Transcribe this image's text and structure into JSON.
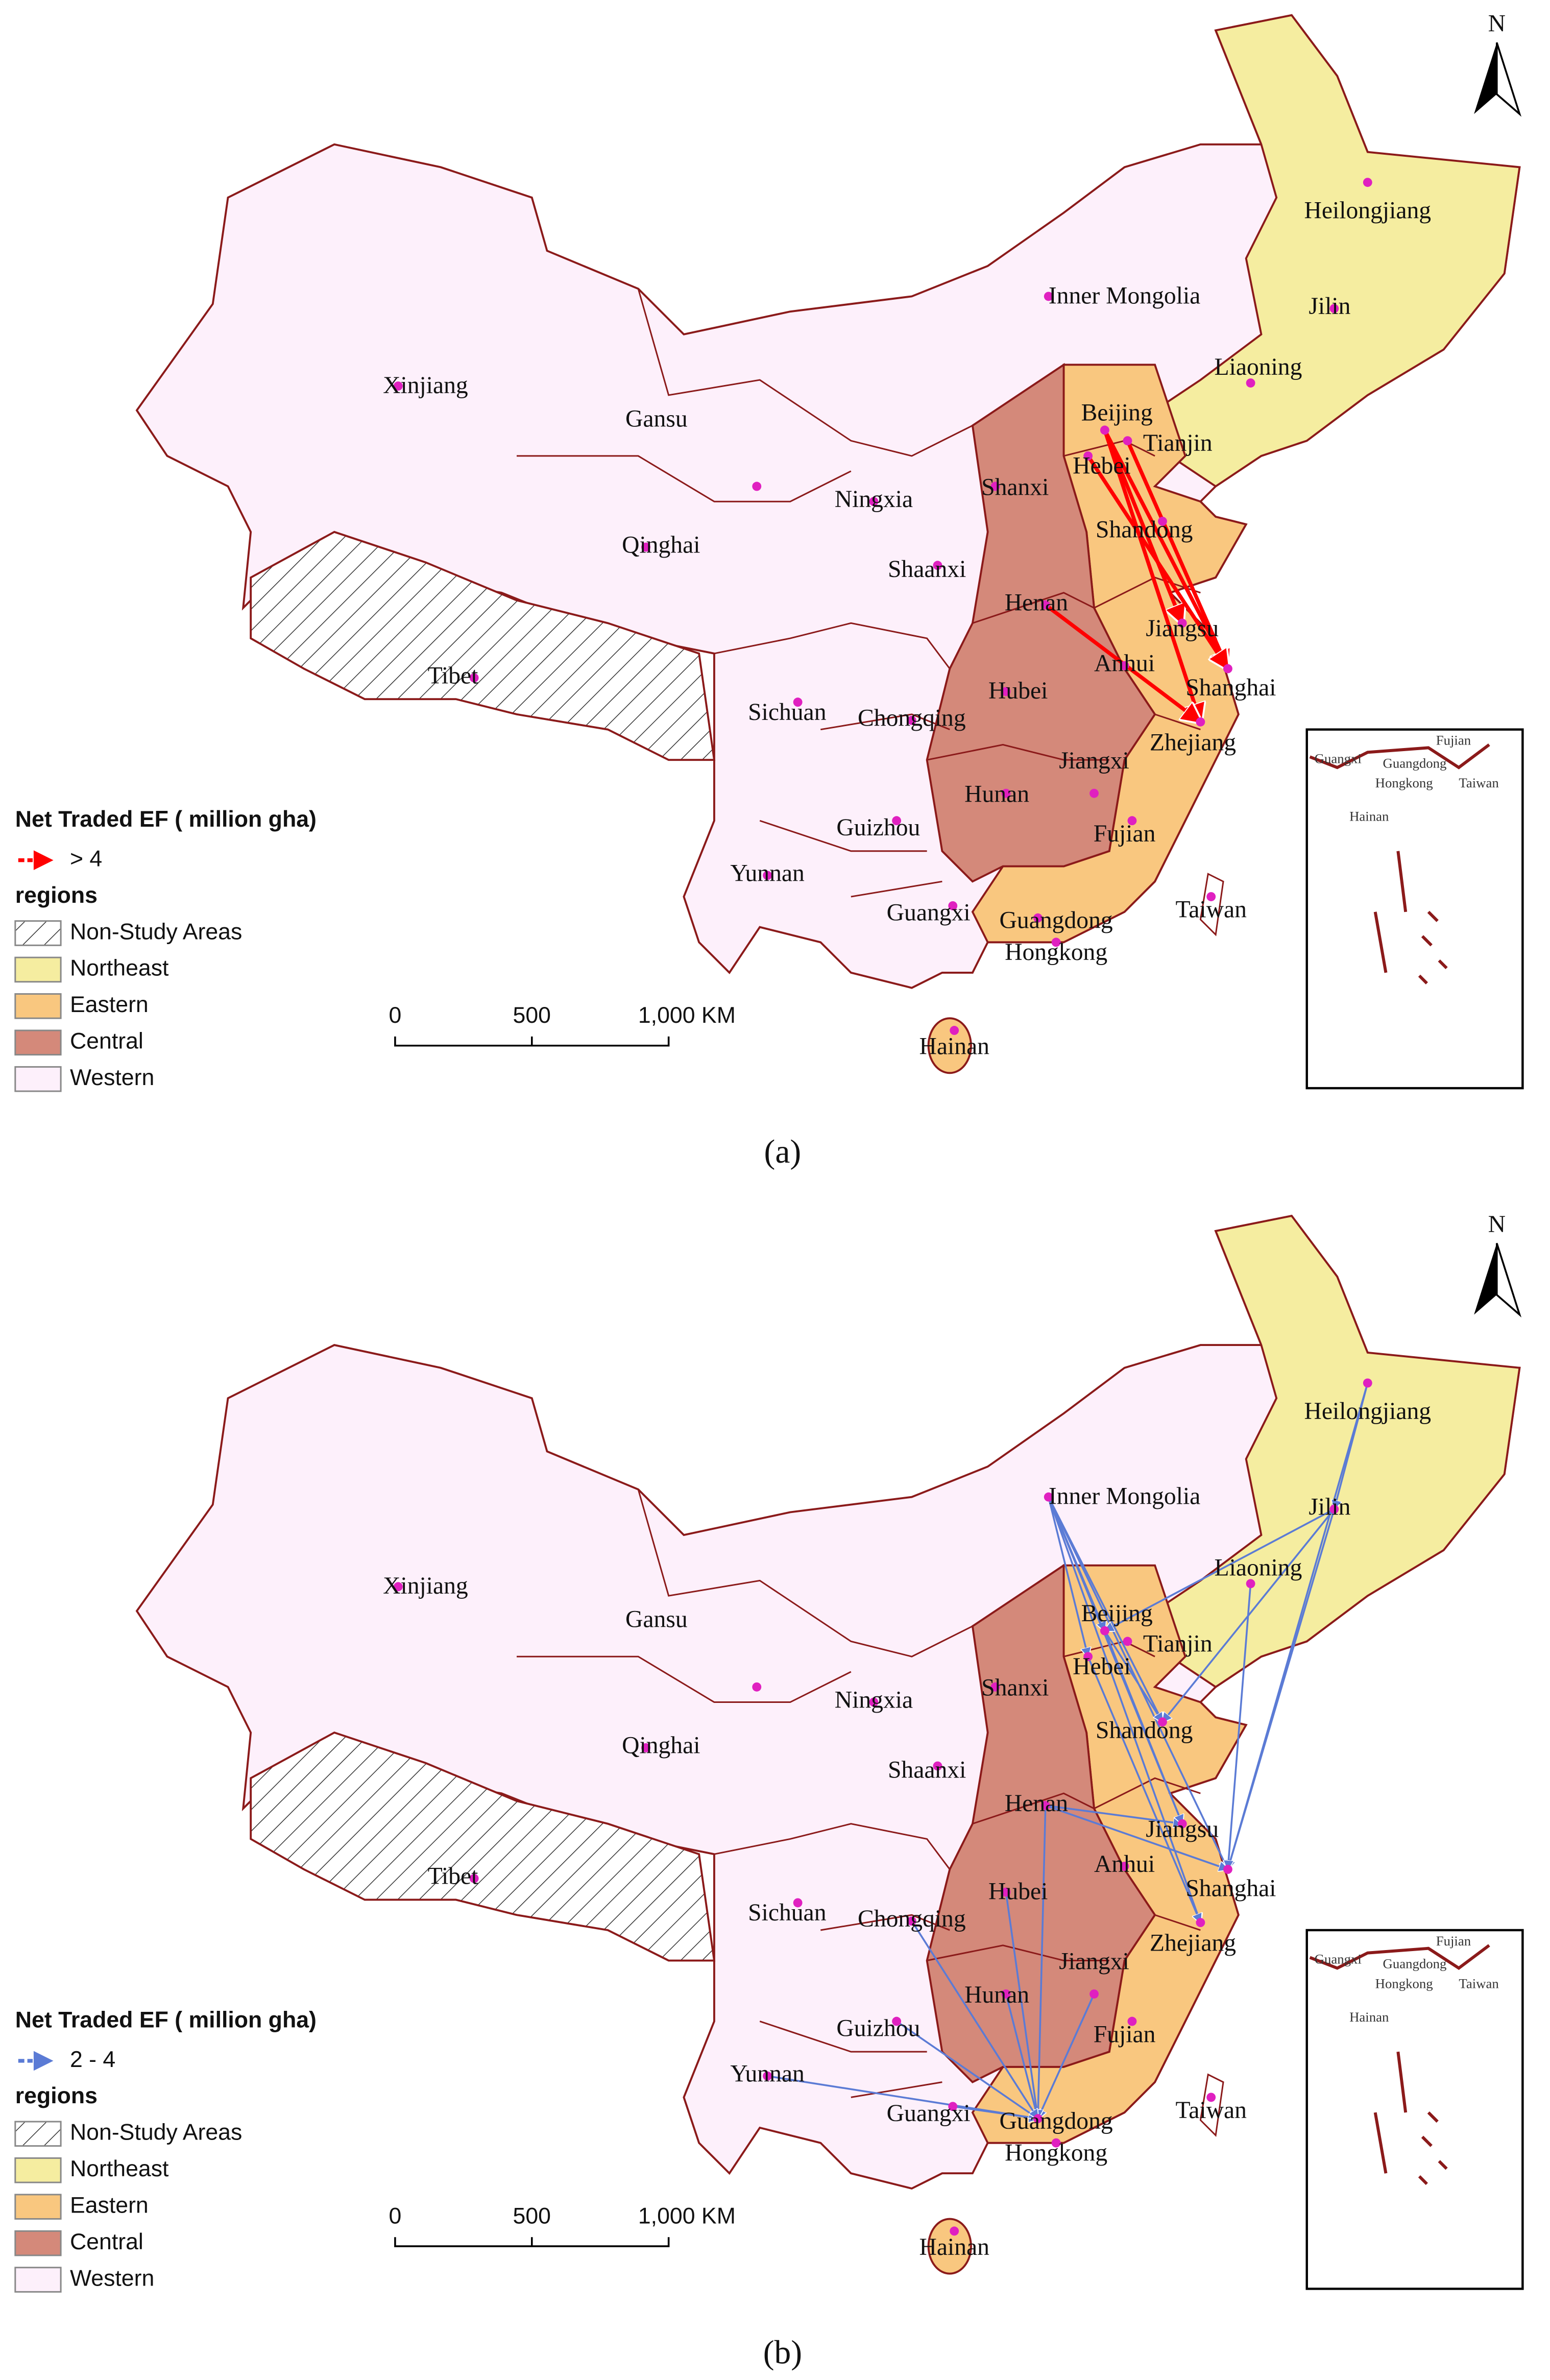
{
  "panels": [
    {
      "caption": "(a)",
      "north": "N",
      "legend_title": "Net Traded EF ( million gha)",
      "flow_label": "> 4",
      "flow_color": "#ff0000",
      "regions_title": "regions",
      "regions": [
        {
          "label": "Non-Study Areas",
          "color": "#ffffff",
          "hatched": true
        },
        {
          "label": "Northeast",
          "color": "#f5eda0"
        },
        {
          "label": "Eastern",
          "color": "#f9c77f"
        },
        {
          "label": "Central",
          "color": "#d4897a"
        },
        {
          "label": "Western",
          "color": "#fdf0fb"
        }
      ],
      "scale_labels": [
        "0",
        "500",
        "1,000 KM"
      ],
      "provinces": [
        "Heilongjiang",
        "Jilin",
        "Liaoning",
        "Inner Mongolia",
        "Xinjiang",
        "Gansu",
        "Beijing",
        "Tianjin",
        "Hebei",
        "Shanxi",
        "Ningxia",
        "Qinghai",
        "Shaanxi",
        "Shandong",
        "Henan",
        "Jiangsu",
        "Anhui",
        "Shanghai",
        "Tibet",
        "Sichuan",
        "Chongqing",
        "Hubei",
        "Zhejiang",
        "Jiangxi",
        "Hunan",
        "Guizhou",
        "Fujian",
        "Yunnan",
        "Guangxi",
        "Guangdong",
        "Taiwan",
        "Hongkong",
        "Hainan"
      ],
      "inset_labels": [
        "Guangxi",
        "Fujian",
        "Guangdong",
        "Hongkong",
        "Taiwan",
        "Hainan"
      ]
    },
    {
      "caption": "(b)",
      "north": "N",
      "legend_title": "Net Traded EF ( million gha)",
      "flow_label": "2 - 4",
      "flow_color": "#5b7bd5",
      "regions_title": "regions",
      "regions": [
        {
          "label": "Non-Study Areas",
          "color": "#ffffff",
          "hatched": true
        },
        {
          "label": "Northeast",
          "color": "#f5eda0"
        },
        {
          "label": "Eastern",
          "color": "#f9c77f"
        },
        {
          "label": "Central",
          "color": "#d4897a"
        },
        {
          "label": "Western",
          "color": "#fdf0fb"
        }
      ],
      "scale_labels": [
        "0",
        "500",
        "1,000 KM"
      ],
      "provinces": [
        "Heilongjiang",
        "Jilin",
        "Liaoning",
        "Inner Mongolia",
        "Xinjiang",
        "Gansu",
        "Beijing",
        "Tianjin",
        "Hebei",
        "Shanxi",
        "Ningxia",
        "Qinghai",
        "Shaanxi",
        "Shandong",
        "Henan",
        "Jiangsu",
        "Anhui",
        "Shanghai",
        "Tibet",
        "Sichuan",
        "Chongqing",
        "Hubei",
        "Zhejiang",
        "Jiangxi",
        "Hunan",
        "Guizhou",
        "Fujian",
        "Yunnan",
        "Guangxi",
        "Guangdong",
        "Taiwan",
        "Hongkong",
        "Hainan"
      ],
      "inset_labels": [
        "Guangxi",
        "Fujian",
        "Guangdong",
        "Hongkong",
        "Taiwan",
        "Hainan"
      ]
    }
  ]
}
